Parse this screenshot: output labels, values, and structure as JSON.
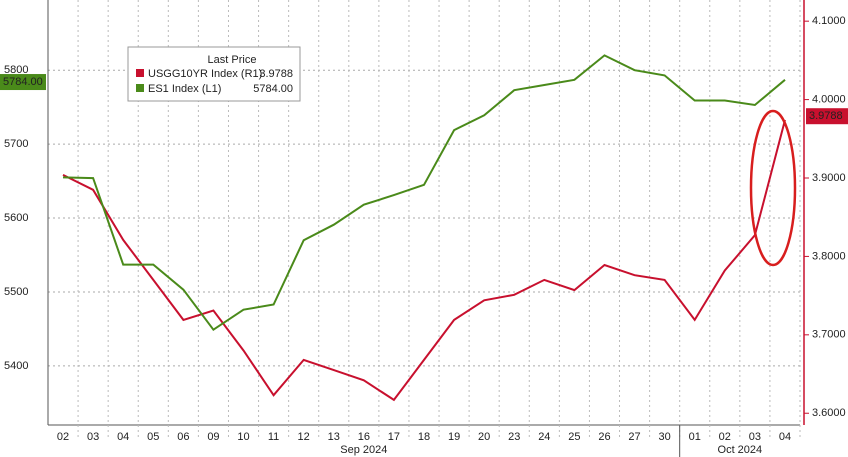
{
  "chart_data": {
    "type": "line",
    "categories": [
      "02",
      "03",
      "04",
      "05",
      "06",
      "09",
      "10",
      "11",
      "12",
      "13",
      "16",
      "17",
      "18",
      "19",
      "20",
      "23",
      "24",
      "25",
      "26",
      "27",
      "30",
      "01",
      "02",
      "03",
      "04"
    ],
    "months": [
      "Sep 2024",
      "Oct 2024"
    ],
    "legend_title": "Last Price",
    "series": [
      {
        "name": "USGG10YR Index (R1)",
        "color": "#c8102e",
        "axis": "y2",
        "last": 3.9788,
        "values": [
          3.904,
          3.885,
          3.821,
          3.77,
          3.719,
          3.731,
          3.68,
          3.623,
          3.668,
          3.655,
          3.642,
          3.617,
          3.668,
          3.719,
          3.744,
          3.751,
          3.77,
          3.757,
          3.789,
          3.776,
          3.77,
          3.719,
          3.782,
          3.827,
          3.974
        ]
      },
      {
        "name": "ES1 Index (L1)",
        "color": "#4a8a1a",
        "axis": "y",
        "last": {
          "value": 5784,
          "label": "5784.00"
        },
        "values": [
          5655,
          5654,
          5537,
          5537,
          5503,
          5449,
          5476,
          5483,
          5570,
          5591,
          5618,
          5631,
          5645,
          5719,
          5739,
          5773,
          5780,
          5787,
          5820,
          5800,
          5793,
          5759,
          5759,
          5753,
          5787
        ]
      }
    ],
    "ylim": [
      5320,
      5895
    ],
    "yticks": [
      5400,
      5500,
      5600,
      5700,
      5800
    ],
    "y2lim": [
      3.585,
      4.127
    ],
    "y2ticks": [
      {
        "value": 3.6,
        "label": "3.6000"
      },
      {
        "value": 3.7,
        "label": "3.7000"
      },
      {
        "value": 3.8,
        "label": "3.8000"
      },
      {
        "value": 3.9,
        "label": "3.9000"
      },
      {
        "value": 4.0,
        "label": "4.0000"
      },
      {
        "value": 4.1,
        "label": "4.1000"
      }
    ],
    "grid": true
  }
}
